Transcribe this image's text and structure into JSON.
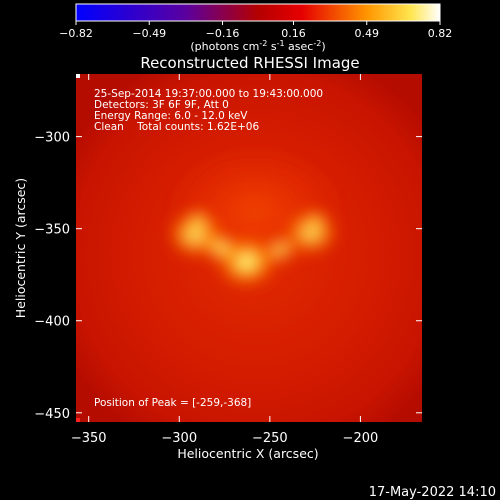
{
  "chart_data": {
    "type": "heatmap",
    "title": "Reconstructed RHESSI Image",
    "colorbar": {
      "ticks": [
        "-0.82",
        "-0.49",
        "-0.16",
        "0.16",
        "0.49",
        "0.82"
      ],
      "range": [
        -0.82,
        0.82
      ],
      "unit_label": "(photons cm",
      "unit_sup1": "-2",
      "unit_mid": " s",
      "unit_sup2": "-1",
      "unit_mid2": " asec",
      "unit_sup3": "-2",
      "unit_end": ")",
      "colormap": "hot"
    },
    "xlabel": "Heliocentric X (arcsec)",
    "ylabel": "Heliocentric Y (arcsec)",
    "xlim": [
      -357,
      -166
    ],
    "ylim": [
      -455,
      -266
    ],
    "xticks": [
      -350,
      -300,
      -250,
      -200
    ],
    "yticks": [
      -300,
      -350,
      -400,
      -450
    ],
    "xtick_labels": [
      "−350",
      "−300",
      "−250",
      "−200"
    ],
    "ytick_labels": [
      "−300",
      "−350",
      "−400",
      "−450"
    ],
    "sources": [
      {
        "x": -263,
        "y": -368,
        "intensity": 0.82
      },
      {
        "x": -291,
        "y": -353,
        "intensity": 0.7
      },
      {
        "x": -227,
        "y": -352,
        "intensity": 0.62
      }
    ],
    "peak": {
      "x": -259,
      "y": -368
    },
    "annotations": {
      "line1": "25-Sep-2014 19:37:00.000 to 19:43:00.000",
      "line2": "Detectors: 3F 6F 9F, Att 0",
      "line3": "Energy Range: 6.0 - 12.0 keV",
      "line4": "Clean    Total counts: 1.62E+06",
      "peak_text": "Position of Peak = [-259,-368]"
    }
  },
  "footer": {
    "timestamp": "17-May-2022 14:10"
  }
}
